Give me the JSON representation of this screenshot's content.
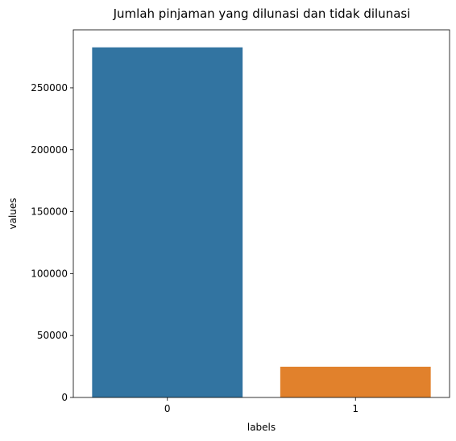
{
  "chart_data": {
    "type": "bar",
    "title": "Jumlah pinjaman yang dilunasi dan tidak dilunasi",
    "xlabel": "labels",
    "ylabel": "values",
    "categories": [
      "0",
      "1"
    ],
    "values": [
      282686,
      24825
    ],
    "colors": [
      "#3274a1",
      "#e1812c"
    ],
    "ylim": [
      0,
      296830
    ],
    "yticks": [
      0,
      50000,
      100000,
      150000,
      200000,
      250000
    ],
    "grid": false,
    "legend": "none"
  }
}
